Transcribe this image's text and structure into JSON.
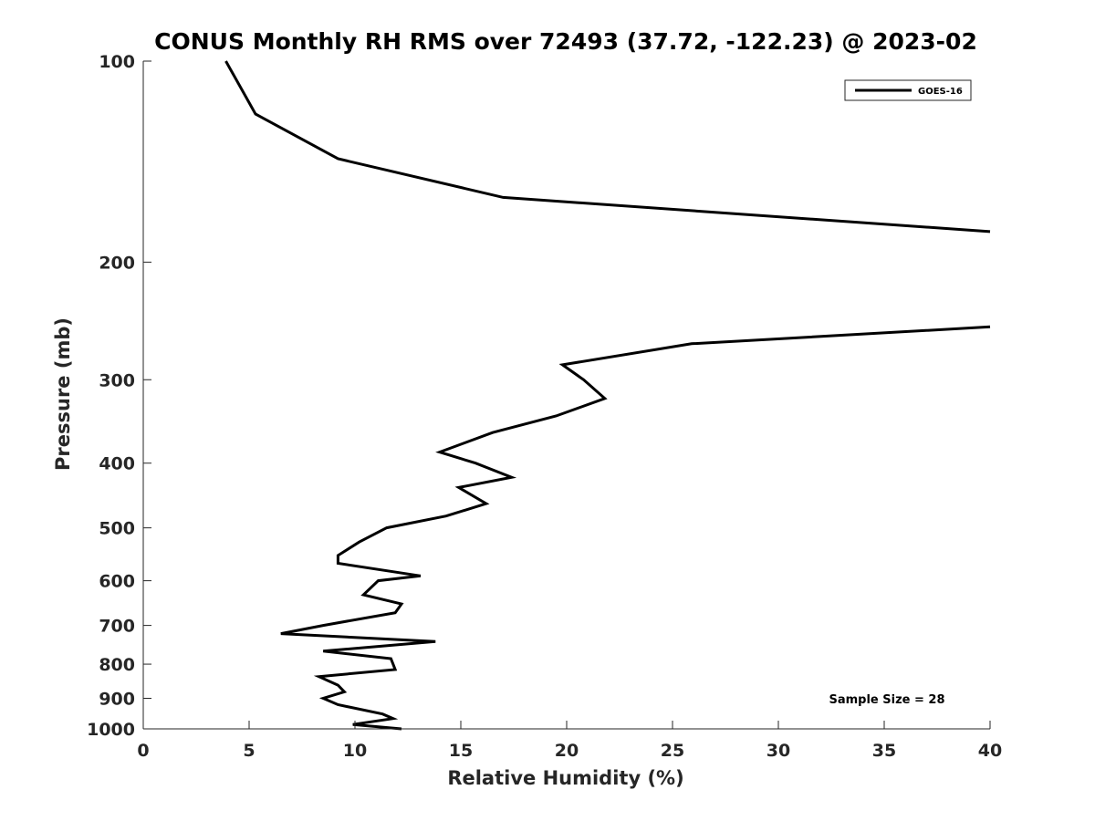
{
  "chart_data": {
    "type": "line",
    "title": "CONUS Monthly RH RMS over 72493 (37.72, -122.23) @ 2023-02",
    "xlabel": "Relative Humidity (%)",
    "ylabel": "Pressure (mb)",
    "xlim": [
      0,
      40
    ],
    "ylim": [
      100,
      1000
    ],
    "y_scale": "log",
    "y_reversed": true,
    "x_ticks": [
      0,
      5,
      10,
      15,
      20,
      25,
      30,
      35,
      40
    ],
    "x_tick_labels": [
      "0",
      "5",
      "10",
      "15",
      "20",
      "25",
      "30",
      "35",
      "40"
    ],
    "y_ticks": [
      100,
      200,
      300,
      400,
      500,
      600,
      700,
      800,
      900,
      1000
    ],
    "y_tick_labels": [
      "100",
      "200",
      "300",
      "400",
      "500",
      "600",
      "700",
      "800",
      "900",
      "1000"
    ],
    "grid": false,
    "legend_position": "top-right",
    "annotation": "Sample Size = 28",
    "series": [
      {
        "name": "GOES-16",
        "color": "#000000",
        "segments": [
          [
            {
              "x": 3.9,
              "y": 100
            },
            {
              "x": 5.3,
              "y": 120
            },
            {
              "x": 9.2,
              "y": 140
            },
            {
              "x": 17.0,
              "y": 160
            },
            {
              "x": 40.0,
              "y": 180
            }
          ],
          [
            {
              "x": 40.0,
              "y": 250
            },
            {
              "x": 25.9,
              "y": 265
            },
            {
              "x": 19.8,
              "y": 285
            },
            {
              "x": 20.8,
              "y": 300
            },
            {
              "x": 21.8,
              "y": 320
            },
            {
              "x": 19.5,
              "y": 340
            },
            {
              "x": 16.5,
              "y": 360
            },
            {
              "x": 14.0,
              "y": 385
            },
            {
              "x": 15.7,
              "y": 400
            },
            {
              "x": 17.4,
              "y": 420
            },
            {
              "x": 14.9,
              "y": 435
            },
            {
              "x": 16.2,
              "y": 460
            },
            {
              "x": 14.3,
              "y": 480
            },
            {
              "x": 11.5,
              "y": 500
            },
            {
              "x": 10.2,
              "y": 525
            },
            {
              "x": 9.2,
              "y": 550
            },
            {
              "x": 9.2,
              "y": 565
            },
            {
              "x": 13.1,
              "y": 590
            },
            {
              "x": 11.1,
              "y": 600
            },
            {
              "x": 10.4,
              "y": 630
            },
            {
              "x": 12.2,
              "y": 650
            },
            {
              "x": 11.9,
              "y": 670
            },
            {
              "x": 8.5,
              "y": 700
            },
            {
              "x": 6.5,
              "y": 720
            },
            {
              "x": 13.8,
              "y": 740
            },
            {
              "x": 8.5,
              "y": 765
            },
            {
              "x": 11.7,
              "y": 785
            },
            {
              "x": 11.8,
              "y": 800
            },
            {
              "x": 11.9,
              "y": 815
            },
            {
              "x": 8.3,
              "y": 835
            },
            {
              "x": 9.2,
              "y": 860
            },
            {
              "x": 9.5,
              "y": 880
            },
            {
              "x": 8.5,
              "y": 900
            },
            {
              "x": 9.2,
              "y": 920
            },
            {
              "x": 11.3,
              "y": 950
            },
            {
              "x": 11.8,
              "y": 965
            },
            {
              "x": 9.9,
              "y": 985
            },
            {
              "x": 12.2,
              "y": 1000
            }
          ]
        ]
      }
    ]
  }
}
